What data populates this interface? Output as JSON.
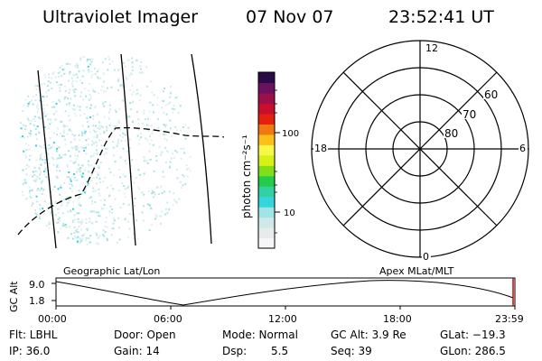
{
  "header": {
    "instrument": "Ultraviolet Imager",
    "date": "07 Nov 07",
    "time": "23:52:41 UT"
  },
  "colorbar": {
    "unit_label": "photon cm⁻²s⁻¹",
    "ticks": [
      "100",
      "10"
    ],
    "colors": [
      "#f6f6f6",
      "#e6ecec",
      "#cfe9e9",
      "#9fe5e5",
      "#33d6dc",
      "#2fd2a0",
      "#22cc4c",
      "#7fe019",
      "#d7f016",
      "#f7f74a",
      "#ffbf1a",
      "#f07a10",
      "#e5200f",
      "#c8102e",
      "#9b0f4a",
      "#6a1260",
      "#2a0a45"
    ]
  },
  "left_panel": {
    "label": "Geographic Lat/Lon"
  },
  "polar_plot": {
    "label": "Apex MLat/MLT",
    "hour_labels": {
      "top": "12",
      "left": "18",
      "right": "6",
      "bottom": "0"
    },
    "lat_labels": [
      "60",
      "70",
      "80"
    ]
  },
  "timeline": {
    "ylabel": "GC Alt",
    "y_ticks": [
      "9.0",
      "1.8"
    ],
    "x_ticks": [
      "00:00",
      "06:00",
      "12:00",
      "18:00",
      "23:59"
    ]
  },
  "info": {
    "row1": {
      "flt": "Flt: LBHL",
      "door": "Door: Open",
      "mode": "Mode: Normal",
      "gcalt": "GC Alt: 3.9 Re",
      "glat": "GLat: −19.3"
    },
    "row2": {
      "ip": "IP: 36.0",
      "gain": "Gain: 14",
      "dsp_label": "Dsp:",
      "dsp_value": "5.5",
      "seq": "Seq: 39",
      "glon": "GLon: 286.5"
    }
  }
}
